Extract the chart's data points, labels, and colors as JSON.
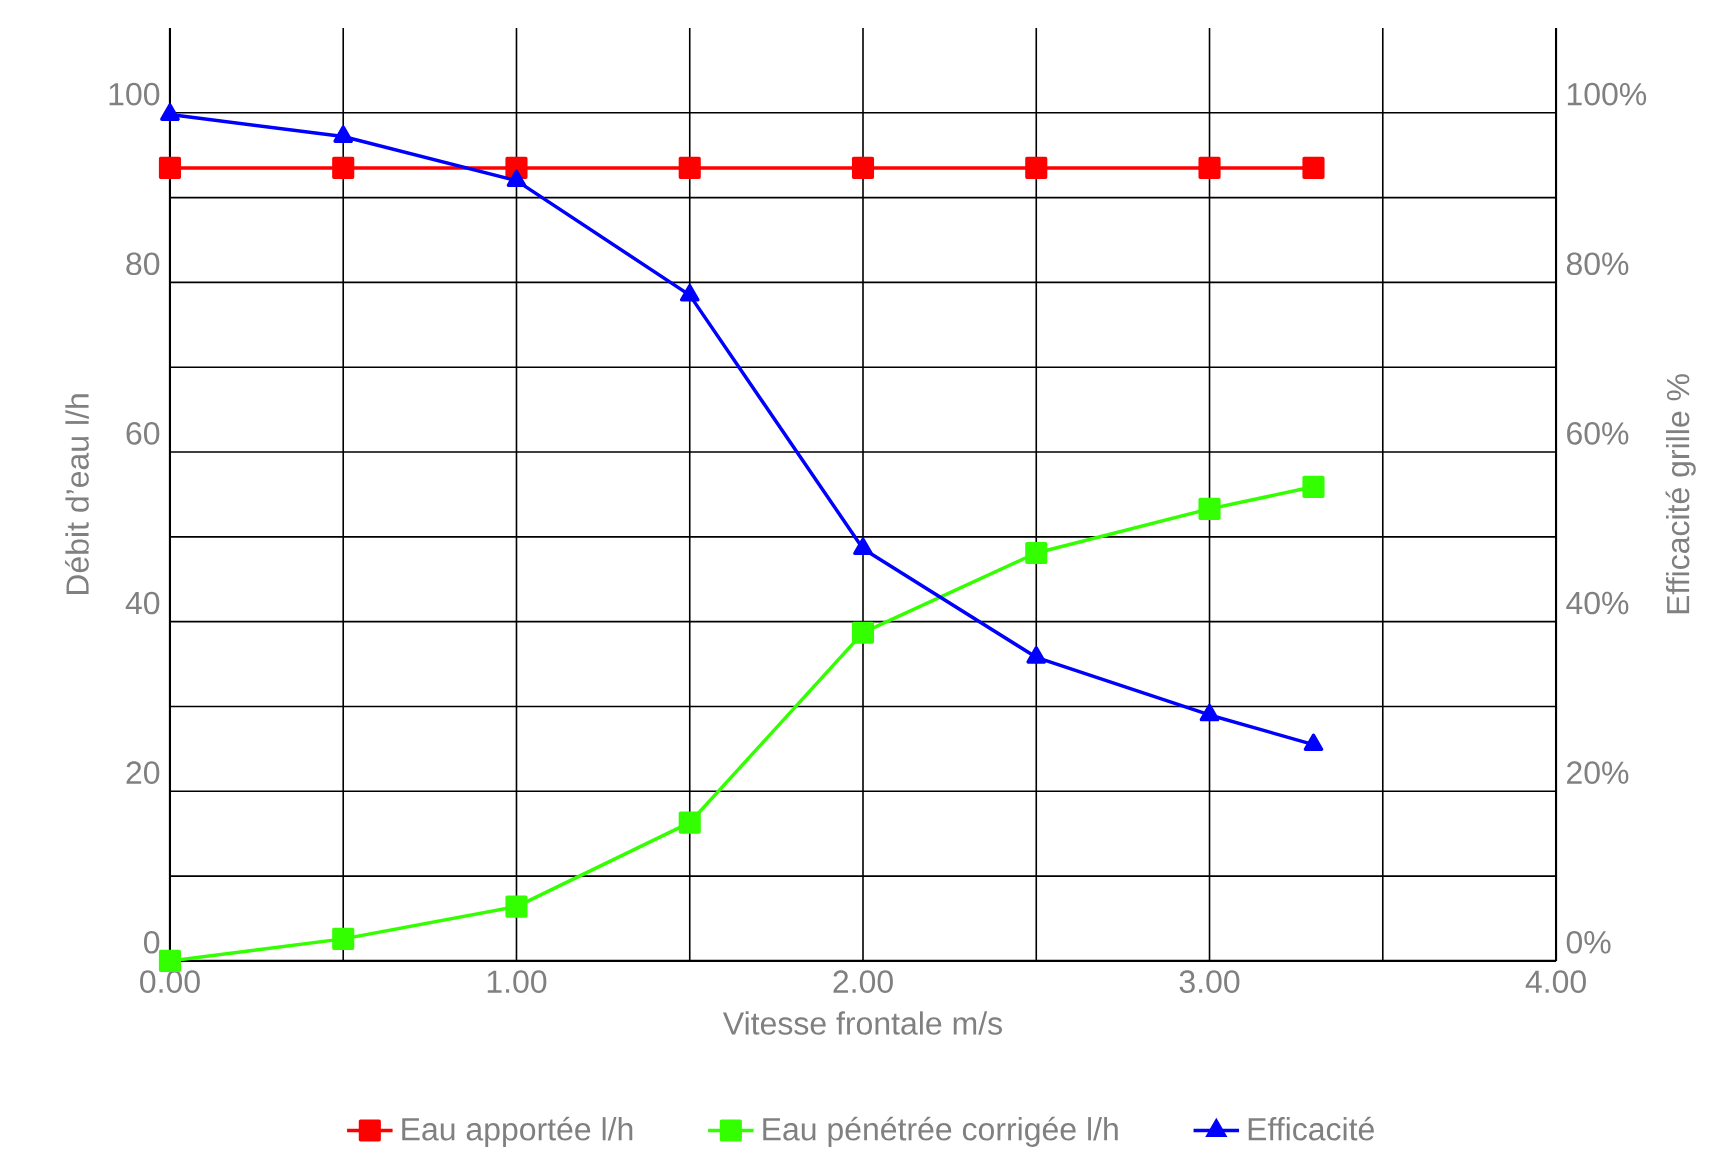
{
  "chart_data": {
    "type": "line",
    "xlabel": "Vitesse frontale m/s",
    "ylabel": "Débit d’eau l/h",
    "y2label": "Efficacité grille %",
    "x": [
      0,
      0.5,
      1.0,
      1.5,
      2.0,
      2.5,
      3.0,
      3.3
    ],
    "series": [
      {
        "name": "Eau apportée l/h",
        "color": "#ff0000",
        "marker": "square",
        "values": [
          93.5,
          93.5,
          93.5,
          93.5,
          93.5,
          93.5,
          93.5,
          93.5
        ]
      },
      {
        "name": "Eau pénétrée corrigée l/h",
        "color": "#33ff00",
        "marker": "square",
        "values": [
          0,
          2.6,
          6.4,
          16.3,
          38.7,
          48.1,
          53.3,
          55.9
        ]
      },
      {
        "name": "Efficacité",
        "color": "#0000ff",
        "marker": "triangle",
        "axis": "y2",
        "values": [
          99.8,
          97.2,
          92,
          78.5,
          48.6,
          35.8,
          29,
          25.5
        ]
      }
    ],
    "xlim": [
      0,
      4
    ],
    "ylim": [
      0,
      110
    ],
    "y2lim": [
      0,
      110
    ],
    "xticks": [
      {
        "value": 0,
        "label": "0.00"
      },
      {
        "value": 0.5,
        "label": null
      },
      {
        "value": 1,
        "label": "1.00"
      },
      {
        "value": 1.5,
        "label": null
      },
      {
        "value": 2,
        "label": "2.00"
      },
      {
        "value": 2.5,
        "label": null
      },
      {
        "value": 3,
        "label": "3.00"
      },
      {
        "value": 3.5,
        "label": null
      },
      {
        "value": 4,
        "label": "4.00"
      }
    ],
    "yticks": [
      0,
      {
        "value": 10,
        "label": null
      },
      20,
      {
        "value": 30,
        "label": null
      },
      40,
      {
        "value": 50,
        "label": null
      },
      60,
      {
        "value": 70,
        "label": null
      },
      80,
      {
        "value": 90,
        "label": null
      },
      100
    ],
    "y2ticks": [
      {
        "value": 0,
        "label": "0%"
      },
      {
        "value": 20,
        "label": "20%"
      },
      {
        "value": 40,
        "label": "40%"
      },
      {
        "value": 60,
        "label": "60%"
      },
      {
        "value": 80,
        "label": "80%"
      },
      {
        "value": 100,
        "label": "100%"
      }
    ],
    "grid": true,
    "legend": "bottom",
    "line_style": "solid"
  }
}
